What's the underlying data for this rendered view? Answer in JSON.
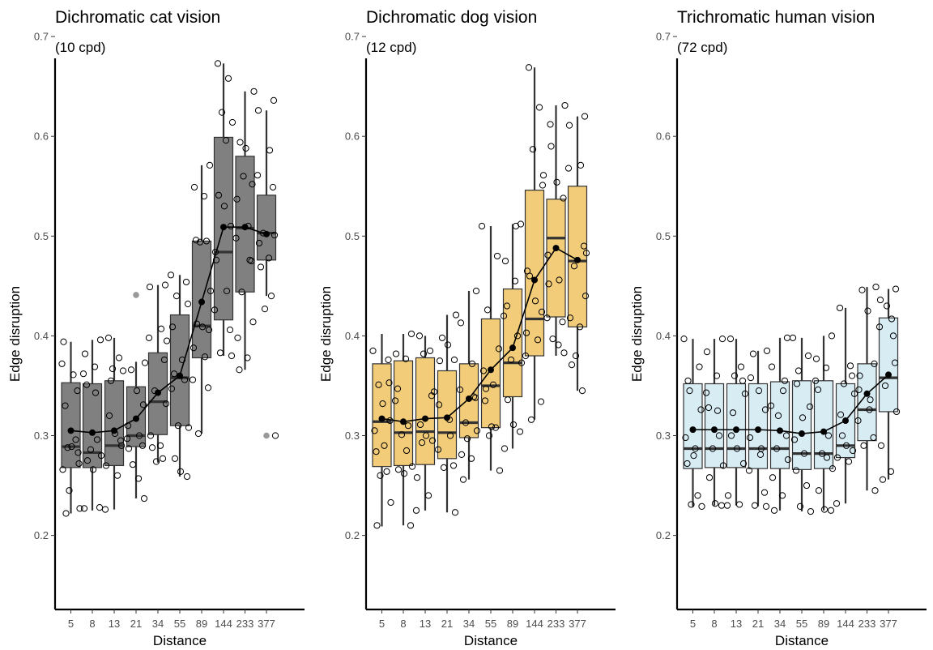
{
  "chart_data": [
    {
      "type": "box",
      "title": "Dichromatic cat vision",
      "subtitle": "(10 cpd)",
      "xlabel": "Distance",
      "ylabel": "Edge disruption",
      "categories": [
        "5",
        "8",
        "13",
        "21",
        "34",
        "55",
        "89",
        "144",
        "233",
        "377"
      ],
      "ylim": [
        0.18,
        0.74
      ],
      "yticks": [
        "0.2",
        "0.3",
        "0.4",
        "0.5",
        "0.6",
        "0.7"
      ],
      "box_fill": "#808080",
      "grid": false,
      "boxes": [
        {
          "q1": 0.268,
          "median": 0.289,
          "q3": 0.353,
          "whisker_low": 0.222,
          "whisker_high": 0.394
        },
        {
          "q1": 0.268,
          "median": 0.283,
          "q3": 0.352,
          "whisker_low": 0.225,
          "whisker_high": 0.396
        },
        {
          "q1": 0.27,
          "median": 0.29,
          "q3": 0.355,
          "whisker_low": 0.226,
          "whisker_high": 0.398
        },
        {
          "q1": 0.289,
          "median": 0.3,
          "q3": 0.349,
          "whisker_low": 0.237,
          "whisker_high": 0.374
        },
        {
          "q1": 0.301,
          "median": 0.334,
          "q3": 0.383,
          "whisker_low": 0.273,
          "whisker_high": 0.451
        },
        {
          "q1": 0.31,
          "median": 0.358,
          "q3": 0.421,
          "whisker_low": 0.259,
          "whisker_high": 0.461
        },
        {
          "q1": 0.378,
          "median": 0.41,
          "q3": 0.495,
          "whisker_low": 0.302,
          "whisker_high": 0.571
        },
        {
          "q1": 0.416,
          "median": 0.484,
          "q3": 0.599,
          "whisker_low": 0.38,
          "whisker_high": 0.673
        },
        {
          "q1": 0.444,
          "median": 0.508,
          "q3": 0.58,
          "whisker_low": 0.366,
          "whisker_high": 0.645
        },
        {
          "q1": 0.476,
          "median": 0.503,
          "q3": 0.541,
          "whisker_low": 0.44,
          "whisker_high": 0.626
        }
      ],
      "outliers": [
        {
          "category": "21",
          "value": 0.441
        },
        {
          "category": "377",
          "value": 0.3
        }
      ],
      "means": [
        0.305,
        0.303,
        0.305,
        0.317,
        0.343,
        0.36,
        0.434,
        0.509,
        0.509,
        0.502
      ],
      "points": [
        [
          0.372,
          0.345,
          0.288,
          0.272,
          0.394,
          0.361,
          0.33,
          0.296,
          0.245,
          0.227,
          0.222,
          0.289,
          0.283,
          0.266
        ],
        [
          0.396,
          0.382,
          0.369,
          0.351,
          0.296,
          0.286,
          0.28,
          0.275,
          0.266,
          0.228,
          0.227,
          0.343,
          0.362
        ],
        [
          0.398,
          0.378,
          0.367,
          0.365,
          0.32,
          0.302,
          0.29,
          0.27,
          0.26,
          0.226,
          0.295,
          0.355
        ],
        [
          0.373,
          0.366,
          0.345,
          0.331,
          0.31,
          0.3,
          0.297,
          0.29,
          0.271,
          0.237,
          0.287,
          0.257
        ],
        [
          0.451,
          0.449,
          0.407,
          0.398,
          0.376,
          0.345,
          0.332,
          0.3,
          0.29,
          0.288,
          0.277,
          0.274,
          0.395
        ],
        [
          0.461,
          0.454,
          0.44,
          0.432,
          0.409,
          0.376,
          0.362,
          0.356,
          0.31,
          0.308,
          0.277,
          0.264,
          0.259,
          0.347
        ],
        [
          0.571,
          0.549,
          0.54,
          0.496,
          0.495,
          0.494,
          0.445,
          0.412,
          0.409,
          0.406,
          0.388,
          0.379,
          0.356,
          0.348,
          0.302
        ],
        [
          0.673,
          0.658,
          0.624,
          0.614,
          0.541,
          0.53,
          0.51,
          0.484,
          0.445,
          0.426,
          0.406,
          0.383,
          0.38,
          0.476,
          0.596
        ],
        [
          0.645,
          0.594,
          0.588,
          0.552,
          0.537,
          0.51,
          0.498,
          0.475,
          0.444,
          0.414,
          0.398,
          0.378,
          0.366,
          0.476,
          0.56
        ],
        [
          0.636,
          0.626,
          0.586,
          0.561,
          0.549,
          0.503,
          0.501,
          0.493,
          0.478,
          0.469,
          0.44,
          0.427,
          0.3
        ]
      ]
    },
    {
      "type": "box",
      "title": "Dichromatic dog vision",
      "subtitle": "(12 cpd)",
      "xlabel": "Distance",
      "ylabel": "Edge disruption",
      "categories": [
        "5",
        "8",
        "13",
        "21",
        "34",
        "55",
        "89",
        "144",
        "233",
        "377"
      ],
      "ylim": [
        0.18,
        0.74
      ],
      "yticks": [
        "0.2",
        "0.3",
        "0.4",
        "0.5",
        "0.6",
        "0.7"
      ],
      "box_fill": "#f2cc78",
      "grid": false,
      "boxes": [
        {
          "q1": 0.269,
          "median": 0.314,
          "q3": 0.372,
          "whisker_low": 0.209,
          "whisker_high": 0.402
        },
        {
          "q1": 0.27,
          "median": 0.303,
          "q3": 0.375,
          "whisker_low": 0.21,
          "whisker_high": 0.402
        },
        {
          "q1": 0.271,
          "median": 0.304,
          "q3": 0.378,
          "whisker_low": 0.225,
          "whisker_high": 0.4
        },
        {
          "q1": 0.277,
          "median": 0.303,
          "q3": 0.365,
          "whisker_low": 0.223,
          "whisker_high": 0.421
        },
        {
          "q1": 0.298,
          "median": 0.313,
          "q3": 0.372,
          "whisker_low": 0.256,
          "whisker_high": 0.445
        },
        {
          "q1": 0.308,
          "median": 0.35,
          "q3": 0.417,
          "whisker_low": 0.265,
          "whisker_high": 0.51
        },
        {
          "q1": 0.339,
          "median": 0.373,
          "q3": 0.447,
          "whisker_low": 0.287,
          "whisker_high": 0.512
        },
        {
          "q1": 0.38,
          "median": 0.417,
          "q3": 0.546,
          "whisker_low": 0.316,
          "whisker_high": 0.669
        },
        {
          "q1": 0.419,
          "median": 0.498,
          "q3": 0.537,
          "whisker_low": 0.38,
          "whisker_high": 0.631
        },
        {
          "q1": 0.409,
          "median": 0.475,
          "q3": 0.55,
          "whisker_low": 0.345,
          "whisker_high": 0.62
        }
      ],
      "outliers": [],
      "means": [
        0.317,
        0.314,
        0.317,
        0.318,
        0.337,
        0.366,
        0.388,
        0.456,
        0.488,
        0.476
      ],
      "points": [
        [
          0.385,
          0.376,
          0.351,
          0.315,
          0.305,
          0.29,
          0.284,
          0.264,
          0.26,
          0.233,
          0.21,
          0.332,
          0.353
        ],
        [
          0.402,
          0.382,
          0.377,
          0.347,
          0.31,
          0.301,
          0.269,
          0.266,
          0.262,
          0.21,
          0.335,
          0.285
        ],
        [
          0.4,
          0.385,
          0.382,
          0.344,
          0.311,
          0.3,
          0.295,
          0.258,
          0.24,
          0.225,
          0.34,
          0.293
        ],
        [
          0.421,
          0.398,
          0.391,
          0.376,
          0.331,
          0.3,
          0.286,
          0.27,
          0.268,
          0.223,
          0.375,
          0.316
        ],
        [
          0.445,
          0.413,
          0.372,
          0.346,
          0.338,
          0.313,
          0.305,
          0.281,
          0.277,
          0.256,
          0.339,
          0.297
        ],
        [
          0.51,
          0.48,
          0.426,
          0.387,
          0.365,
          0.351,
          0.335,
          0.308,
          0.3,
          0.265,
          0.347,
          0.309
        ],
        [
          0.512,
          0.475,
          0.455,
          0.43,
          0.4,
          0.376,
          0.373,
          0.336,
          0.311,
          0.304,
          0.287,
          0.51,
          0.42
        ],
        [
          0.669,
          0.629,
          0.587,
          0.561,
          0.46,
          0.435,
          0.424,
          0.403,
          0.396,
          0.38,
          0.334,
          0.316,
          0.551,
          0.465
        ],
        [
          0.631,
          0.59,
          0.554,
          0.538,
          0.481,
          0.456,
          0.418,
          0.414,
          0.397,
          0.383,
          0.452,
          0.391,
          0.612
        ],
        [
          0.62,
          0.611,
          0.571,
          0.568,
          0.49,
          0.47,
          0.44,
          0.418,
          0.409,
          0.371,
          0.345,
          0.38,
          0.483
        ]
      ]
    },
    {
      "type": "box",
      "title": "Trichromatic human vision",
      "subtitle": "(72 cpd)",
      "xlabel": "Distance",
      "ylabel": "Edge disruption",
      "categories": [
        "5",
        "8",
        "13",
        "21",
        "34",
        "55",
        "89",
        "144",
        "233",
        "377"
      ],
      "ylim": [
        0.18,
        0.74
      ],
      "yticks": [
        "0.2",
        "0.3",
        "0.4",
        "0.5",
        "0.6",
        "0.7"
      ],
      "box_fill": "#d8ecf4",
      "grid": false,
      "boxes": [
        {
          "q1": 0.267,
          "median": 0.287,
          "q3": 0.352,
          "whisker_low": 0.229,
          "whisker_high": 0.397
        },
        {
          "q1": 0.268,
          "median": 0.287,
          "q3": 0.352,
          "whisker_low": 0.23,
          "whisker_high": 0.397
        },
        {
          "q1": 0.268,
          "median": 0.287,
          "q3": 0.352,
          "whisker_low": 0.23,
          "whisker_high": 0.397
        },
        {
          "q1": 0.267,
          "median": 0.287,
          "q3": 0.352,
          "whisker_low": 0.229,
          "whisker_high": 0.385
        },
        {
          "q1": 0.267,
          "median": 0.287,
          "q3": 0.354,
          "whisker_low": 0.225,
          "whisker_high": 0.398
        },
        {
          "q1": 0.266,
          "median": 0.282,
          "q3": 0.355,
          "whisker_low": 0.224,
          "whisker_high": 0.398
        },
        {
          "q1": 0.267,
          "median": 0.282,
          "q3": 0.355,
          "whisker_low": 0.225,
          "whisker_high": 0.4
        },
        {
          "q1": 0.278,
          "median": 0.29,
          "q3": 0.352,
          "whisker_low": 0.232,
          "whisker_high": 0.428
        },
        {
          "q1": 0.295,
          "median": 0.326,
          "q3": 0.372,
          "whisker_low": 0.245,
          "whisker_high": 0.449
        },
        {
          "q1": 0.324,
          "median": 0.358,
          "q3": 0.418,
          "whisker_low": 0.256,
          "whisker_high": 0.447
        }
      ],
      "outliers": [],
      "means": [
        0.306,
        0.306,
        0.306,
        0.306,
        0.305,
        0.302,
        0.304,
        0.315,
        0.342,
        0.361
      ],
      "points": [
        [
          0.397,
          0.369,
          0.345,
          0.326,
          0.298,
          0.287,
          0.272,
          0.24,
          0.231,
          0.229,
          0.355,
          0.28
        ],
        [
          0.397,
          0.384,
          0.36,
          0.328,
          0.3,
          0.287,
          0.27,
          0.258,
          0.232,
          0.23,
          0.343,
          0.325
        ],
        [
          0.397,
          0.369,
          0.36,
          0.342,
          0.3,
          0.287,
          0.272,
          0.24,
          0.231,
          0.23,
          0.355,
          0.323
        ],
        [
          0.385,
          0.382,
          0.345,
          0.326,
          0.298,
          0.287,
          0.265,
          0.243,
          0.23,
          0.229,
          0.358,
          0.281
        ],
        [
          0.398,
          0.369,
          0.345,
          0.33,
          0.3,
          0.287,
          0.276,
          0.258,
          0.24,
          0.225,
          0.355,
          0.32
        ],
        [
          0.398,
          0.38,
          0.365,
          0.329,
          0.296,
          0.282,
          0.265,
          0.25,
          0.229,
          0.224,
          0.352,
          0.318
        ],
        [
          0.4,
          0.377,
          0.368,
          0.346,
          0.3,
          0.282,
          0.267,
          0.245,
          0.226,
          0.225,
          0.355,
          0.278
        ],
        [
          0.428,
          0.37,
          0.352,
          0.342,
          0.321,
          0.29,
          0.285,
          0.278,
          0.274,
          0.232,
          0.36,
          0.3
        ],
        [
          0.449,
          0.446,
          0.425,
          0.372,
          0.346,
          0.336,
          0.315,
          0.298,
          0.29,
          0.245,
          0.36,
          0.326
        ],
        [
          0.447,
          0.436,
          0.417,
          0.409,
          0.373,
          0.35,
          0.324,
          0.29,
          0.264,
          0.256,
          0.4,
          0.43
        ]
      ]
    }
  ]
}
